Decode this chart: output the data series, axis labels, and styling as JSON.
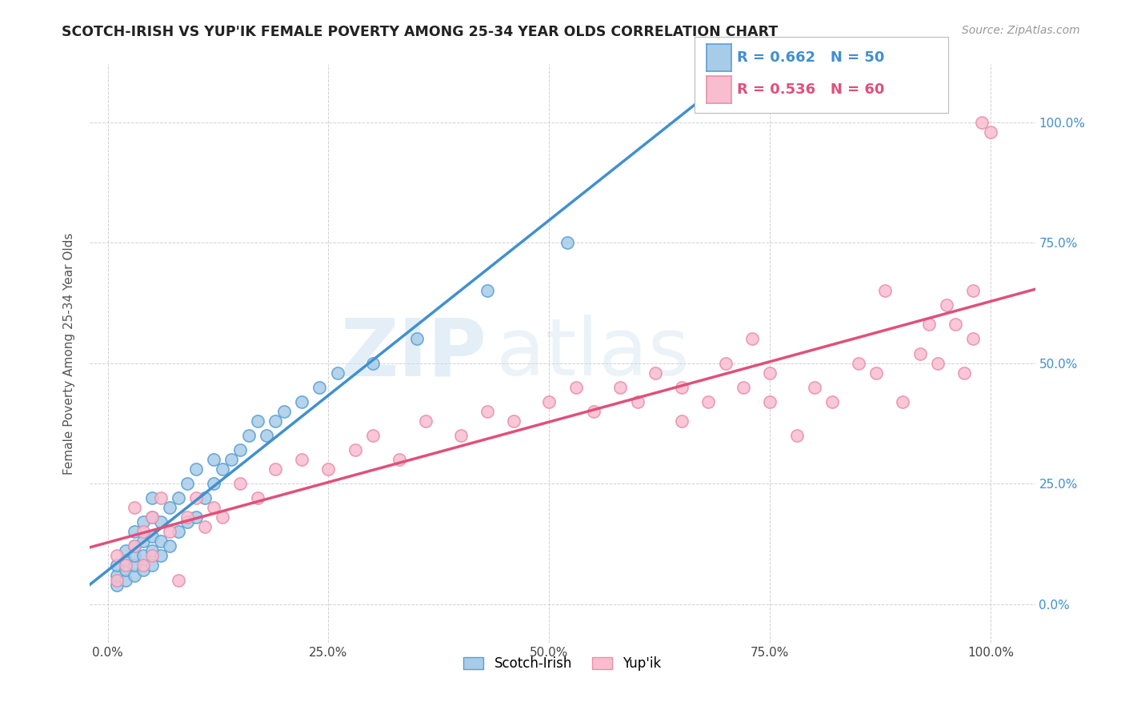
{
  "title": "SCOTCH-IRISH VS YUP'IK FEMALE POVERTY AMONG 25-34 YEAR OLDS CORRELATION CHART",
  "source": "Source: ZipAtlas.com",
  "ylabel": "Female Poverty Among 25-34 Year Olds",
  "xlim": [
    -0.02,
    1.05
  ],
  "ylim": [
    -0.08,
    1.12
  ],
  "xtick_labels": [
    "0.0%",
    "25.0%",
    "50.0%",
    "75.0%",
    "100.0%"
  ],
  "xtick_vals": [
    0.0,
    0.25,
    0.5,
    0.75,
    1.0
  ],
  "ytick_vals": [
    0.0,
    0.25,
    0.5,
    0.75,
    1.0
  ],
  "ytick_labels_right": [
    "0.0%",
    "25.0%",
    "50.0%",
    "75.0%",
    "100.0%"
  ],
  "scotch_irish_R": 0.662,
  "scotch_irish_N": 50,
  "yupik_R": 0.536,
  "yupik_N": 60,
  "scotch_irish_color": "#a8cce8",
  "yupik_color": "#f9bdd0",
  "scotch_irish_edge": "#5a9fd4",
  "yupik_edge": "#e890aa",
  "scotch_irish_line_color": "#4090d0",
  "yupik_line_color": "#e0507a",
  "background_color": "#ffffff",
  "watermark_zip": "ZIP",
  "watermark_atlas": "atlas",
  "scotch_irish_x": [
    0.01,
    0.01,
    0.01,
    0.02,
    0.02,
    0.02,
    0.02,
    0.03,
    0.03,
    0.03,
    0.03,
    0.03,
    0.04,
    0.04,
    0.04,
    0.04,
    0.05,
    0.05,
    0.05,
    0.05,
    0.05,
    0.06,
    0.06,
    0.06,
    0.07,
    0.07,
    0.08,
    0.08,
    0.09,
    0.09,
    0.1,
    0.1,
    0.11,
    0.12,
    0.12,
    0.13,
    0.14,
    0.15,
    0.16,
    0.17,
    0.18,
    0.19,
    0.2,
    0.22,
    0.24,
    0.26,
    0.3,
    0.35,
    0.43,
    0.52
  ],
  "scotch_irish_y": [
    0.04,
    0.06,
    0.08,
    0.05,
    0.07,
    0.09,
    0.11,
    0.06,
    0.08,
    0.1,
    0.12,
    0.15,
    0.07,
    0.1,
    0.13,
    0.17,
    0.08,
    0.11,
    0.14,
    0.18,
    0.22,
    0.1,
    0.13,
    0.17,
    0.12,
    0.2,
    0.15,
    0.22,
    0.17,
    0.25,
    0.18,
    0.28,
    0.22,
    0.25,
    0.3,
    0.28,
    0.3,
    0.32,
    0.35,
    0.38,
    0.35,
    0.38,
    0.4,
    0.42,
    0.45,
    0.48,
    0.5,
    0.55,
    0.65,
    0.75
  ],
  "yupik_x": [
    0.01,
    0.01,
    0.02,
    0.03,
    0.03,
    0.04,
    0.04,
    0.05,
    0.05,
    0.06,
    0.07,
    0.08,
    0.09,
    0.1,
    0.11,
    0.12,
    0.13,
    0.15,
    0.17,
    0.19,
    0.22,
    0.25,
    0.28,
    0.3,
    0.33,
    0.36,
    0.4,
    0.43,
    0.46,
    0.5,
    0.53,
    0.55,
    0.58,
    0.6,
    0.62,
    0.65,
    0.65,
    0.68,
    0.7,
    0.72,
    0.73,
    0.75,
    0.75,
    0.78,
    0.8,
    0.82,
    0.85,
    0.87,
    0.88,
    0.9,
    0.92,
    0.93,
    0.94,
    0.95,
    0.96,
    0.97,
    0.98,
    0.98,
    0.99,
    1.0
  ],
  "yupik_y": [
    0.05,
    0.1,
    0.08,
    0.12,
    0.2,
    0.08,
    0.15,
    0.1,
    0.18,
    0.22,
    0.15,
    0.05,
    0.18,
    0.22,
    0.16,
    0.2,
    0.18,
    0.25,
    0.22,
    0.28,
    0.3,
    0.28,
    0.32,
    0.35,
    0.3,
    0.38,
    0.35,
    0.4,
    0.38,
    0.42,
    0.45,
    0.4,
    0.45,
    0.42,
    0.48,
    0.38,
    0.45,
    0.42,
    0.5,
    0.45,
    0.55,
    0.42,
    0.48,
    0.35,
    0.45,
    0.42,
    0.5,
    0.48,
    0.65,
    0.42,
    0.52,
    0.58,
    0.5,
    0.62,
    0.58,
    0.48,
    0.55,
    0.65,
    1.0,
    0.98
  ]
}
